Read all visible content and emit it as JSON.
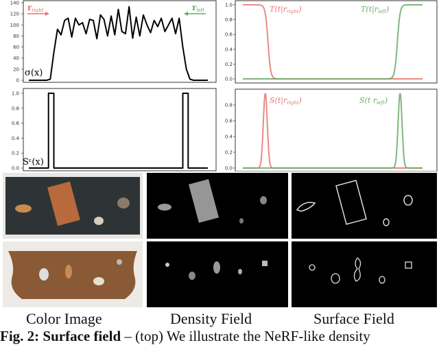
{
  "chart_data": [
    {
      "type": "line",
      "panel": "top-left",
      "label": "σ(x)",
      "arrows": [
        {
          "label": "r_right",
          "direction": "right",
          "color": "#e8736f"
        },
        {
          "label": "r_left",
          "direction": "left",
          "color": "#6aaa64"
        }
      ],
      "yticks": [
        "0",
        "20",
        "40",
        "60",
        "80",
        "100",
        "120",
        "140"
      ],
      "ylim": [
        0,
        140
      ],
      "xlim": [
        0,
        1
      ],
      "series": [
        {
          "color": "#000000",
          "values": [
            0,
            0,
            0,
            0,
            0,
            0,
            2,
            50,
            92,
            82,
            108,
            112,
            78,
            112,
            100,
            104,
            84,
            110,
            108,
            75,
            118,
            110,
            80,
            116,
            82,
            128,
            88,
            84,
            133,
            76,
            114,
            80,
            118,
            100,
            86,
            108,
            97,
            112,
            88,
            100,
            112,
            84,
            112,
            60,
            20,
            2,
            0,
            0,
            0,
            0,
            0
          ]
        }
      ]
    },
    {
      "type": "line",
      "panel": "bottom-left",
      "label": "Sᵋ(x)",
      "yticks": [
        "0.0",
        "0.2",
        "0.4",
        "0.6",
        "0.8",
        "1.0"
      ],
      "ylim": [
        0,
        1
      ],
      "xlim": [
        0,
        1
      ],
      "series": [
        {
          "color": "#000000",
          "points": [
            [
              0,
              0
            ],
            [
              0.11,
              0
            ],
            [
              0.11,
              1
            ],
            [
              0.14,
              1
            ],
            [
              0.14,
              0
            ],
            [
              0.86,
              0
            ],
            [
              0.86,
              1
            ],
            [
              0.89,
              1
            ],
            [
              0.89,
              0
            ],
            [
              1,
              0
            ]
          ]
        }
      ]
    },
    {
      "type": "line",
      "panel": "top-right",
      "yticks": [
        "0.0",
        "0.2",
        "0.4",
        "0.6",
        "0.8",
        "1.0"
      ],
      "ylim": [
        0,
        1
      ],
      "xlim": [
        0,
        1
      ],
      "series": [
        {
          "name": "T(t|r_right)",
          "color": "#e8736f",
          "kind": "falling",
          "center": 0.14,
          "width": 0.015
        },
        {
          "name": "T(t|r_left)",
          "color": "#6aaa64",
          "kind": "rising",
          "center": 0.86,
          "width": 0.015
        }
      ]
    },
    {
      "type": "line",
      "panel": "bottom-right",
      "yticks": [
        "0.0",
        "0.2",
        "0.4",
        "0.6",
        "0.8"
      ],
      "ylim": [
        0,
        0.95
      ],
      "xlim": [
        0,
        1
      ],
      "series": [
        {
          "name": "S(t|r_right)",
          "color": "#e8736f",
          "kind": "peak",
          "center": 0.125,
          "width": 0.022,
          "height": 0.95
        },
        {
          "name": "S(t r_left)",
          "color": "#6aaa64",
          "kind": "peak",
          "center": 0.875,
          "width": 0.022,
          "height": 0.95
        }
      ]
    }
  ],
  "labels": {
    "r_right": "r",
    "r_right_sub": "right",
    "r_left": "r",
    "r_left_sub": "left",
    "sigma": "σ(x)",
    "se": "Sᵋ(x)",
    "t_right": "T(t|r",
    "t_right_sub": "right",
    "t_left": "T(t|r",
    "t_left_sub": "left",
    "s_right": "S(t|r",
    "s_right_sub": "right",
    "s_left": "S(t r",
    "s_left_sub": "left"
  },
  "columns": [
    "Color Image",
    "Density Field",
    "Surface Field"
  ],
  "caption": {
    "prefix": "Fig. 2:",
    "bold": "Surface field",
    "rest": " – (top) We illustrate the NeRF-like density"
  }
}
